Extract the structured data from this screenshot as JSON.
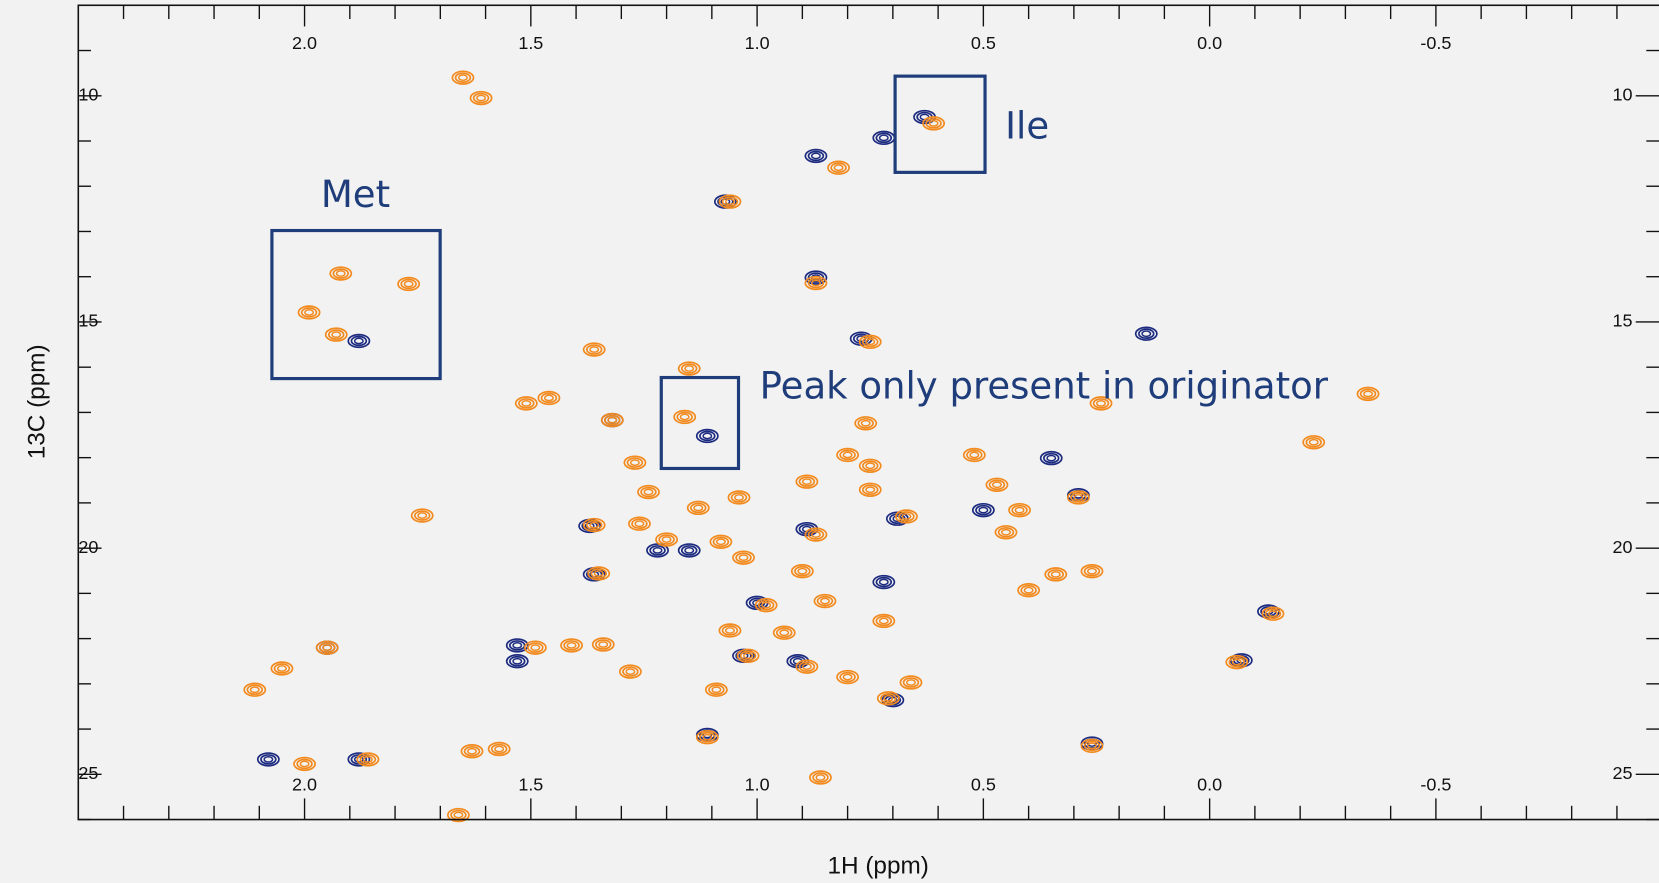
{
  "chart_data": {
    "type": "contour",
    "x_label": "1H (ppm)",
    "y_label": "13C (ppm)",
    "annotations": [
      "Met",
      "Ile",
      "Peak only present in originator"
    ],
    "xlim": [
      2.5,
      -1.0
    ],
    "ylim": [
      8,
      26
    ],
    "xticks": [
      {
        "value": 2.0,
        "label": "2.0"
      },
      1.5,
      {
        "value": 1.0,
        "label": "1.0"
      },
      0.5,
      {
        "value": 0,
        "label": "0.0"
      },
      -0.5
    ],
    "yticks": [
      10,
      15,
      20,
      25
    ],
    "x_minor_ticks": [
      2.4,
      2.3,
      2.2,
      2.1,
      1.9,
      1.8,
      1.7,
      1.6,
      1.4,
      1.3,
      1.2,
      1.1,
      0.9,
      0.8,
      0.7,
      0.6,
      0.4,
      0.3,
      0.2,
      0.1,
      -0.1,
      -0.2,
      -0.3,
      -0.4,
      -0.6,
      -0.7,
      -0.8,
      -0.9
    ],
    "y_minor_ticks": [
      9,
      11,
      12,
      13,
      14,
      16,
      17,
      18,
      19,
      21,
      22,
      23,
      24,
      26
    ],
    "series": [
      {
        "color": "#1c2b80",
        "x": [
          0.63,
          1.88,
          1.11,
          0.87,
          0.72,
          1.07,
          0.87,
          0.77,
          1.32,
          1.36,
          1.37,
          1.22,
          1.15,
          0.89,
          1.0,
          1.03,
          0.91,
          1.53,
          1.53,
          2.08,
          1.95,
          1.88,
          0.14,
          0.35,
          0.29,
          -0.07,
          -0.13,
          0.26,
          0.72,
          0.7,
          1.11,
          0.69,
          0.5
        ],
        "y": [
          10.47,
          15.42,
          17.52,
          11.33,
          10.93,
          12.34,
          14.02,
          15.37,
          17.17,
          20.58,
          19.51,
          20.05,
          20.05,
          19.58,
          21.21,
          22.38,
          22.5,
          22.5,
          22.15,
          24.67,
          22.2,
          24.67,
          15.26,
          18.01,
          18.83,
          22.48,
          21.4,
          24.32,
          20.75,
          23.36,
          24.13,
          19.35,
          19.16
        ]
      },
      {
        "color": "#f28a1e",
        "x": [
          1.65,
          1.61,
          1.92,
          1.77,
          1.99,
          1.93,
          1.36,
          1.15,
          1.51,
          1.46,
          1.32,
          1.27,
          1.16,
          1.24,
          1.13,
          1.04,
          0.89,
          0.8,
          0.75,
          0.67,
          0.87,
          0.9,
          1.35,
          1.36,
          1.26,
          1.2,
          1.08,
          1.03,
          0.98,
          0.85,
          1.06,
          0.94,
          1.02,
          0.89,
          0.8,
          0.66,
          0.71,
          0.72,
          1.09,
          1.11,
          1.49,
          1.41,
          1.34,
          1.28,
          1.63,
          1.57,
          1.95,
          2.05,
          2.11,
          2.0,
          1.86,
          1.74,
          1.06,
          0.87,
          0.82,
          0.75,
          0.76,
          0.75,
          -0.23,
          0.29,
          -0.06,
          -0.14,
          0.26,
          0.34,
          -0.35,
          0.24,
          0.26,
          0.42,
          0.45,
          0.47,
          0.61,
          0.86,
          1.66,
          0.52,
          0.4
        ],
        "y": [
          9.6,
          10.05,
          13.93,
          14.16,
          14.79,
          15.28,
          15.61,
          16.03,
          16.8,
          16.68,
          17.17,
          18.11,
          17.1,
          18.76,
          19.11,
          18.88,
          18.53,
          17.94,
          18.18,
          19.3,
          19.7,
          20.51,
          20.56,
          19.49,
          19.46,
          19.81,
          19.86,
          20.21,
          21.26,
          21.17,
          21.82,
          21.87,
          22.38,
          22.62,
          22.85,
          22.97,
          23.32,
          21.61,
          23.13,
          24.18,
          22.2,
          22.15,
          22.13,
          22.73,
          24.49,
          24.44,
          22.2,
          22.66,
          23.13,
          24.77,
          24.67,
          19.28,
          12.34,
          14.14,
          11.59,
          15.44,
          17.24,
          18.71,
          17.66,
          18.88,
          22.52,
          21.45,
          20.51,
          20.58,
          16.59,
          16.8,
          24.37,
          19.16,
          19.65,
          18.6,
          10.61,
          25.07,
          25.9,
          17.94,
          20.93
        ]
      }
    ]
  }
}
